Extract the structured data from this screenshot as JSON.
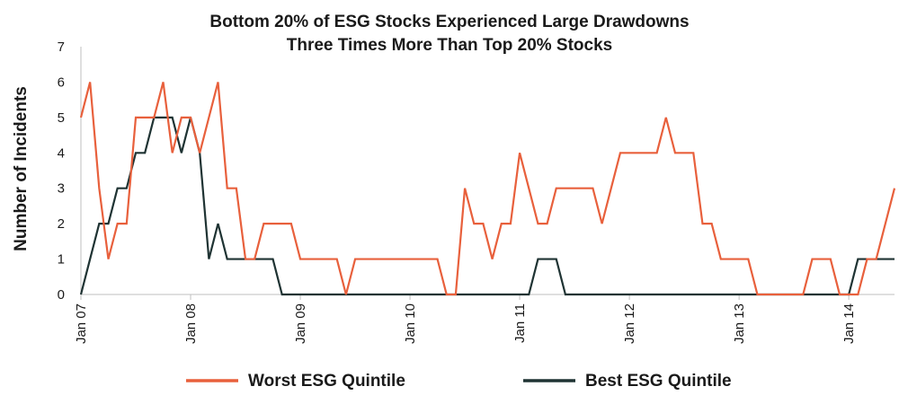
{
  "chart_data": {
    "type": "line",
    "title_lines": [
      "Bottom 20% of ESG Stocks Experienced Large Drawdowns",
      "Three Times More Than Top 20% Stocks"
    ],
    "xlabel": "",
    "ylabel": "Number of Incidents",
    "ylim": [
      0,
      7
    ],
    "yticks": [
      "0",
      "1",
      "2",
      "3",
      "4",
      "5",
      "6",
      "7"
    ],
    "x_start": "Jan 07",
    "x_end": "May 14",
    "x_unit": "month",
    "xticks": [
      {
        "label": "Jan 07",
        "month": 0
      },
      {
        "label": "Jan 08",
        "month": 12
      },
      {
        "label": "Jan 09",
        "month": 24
      },
      {
        "label": "Jan 10",
        "month": 36
      },
      {
        "label": "Jan 11",
        "month": 48
      },
      {
        "label": "Jan 12",
        "month": 60
      },
      {
        "label": "Jan 13",
        "month": 72
      },
      {
        "label": "Jan 14",
        "month": 84
      }
    ],
    "grid": false,
    "legend_position": "bottom",
    "series": [
      {
        "name": "Worst ESG Quintile",
        "color": "#E8603C",
        "points": [
          [
            0,
            5
          ],
          [
            1,
            6
          ],
          [
            2,
            3
          ],
          [
            3,
            1
          ],
          [
            4,
            2
          ],
          [
            5,
            2
          ],
          [
            6,
            5
          ],
          [
            7,
            5
          ],
          [
            8,
            5
          ],
          [
            9,
            6
          ],
          [
            10,
            4
          ],
          [
            11,
            5
          ],
          [
            12,
            5
          ],
          [
            13,
            4
          ],
          [
            14,
            5
          ],
          [
            15,
            6
          ],
          [
            16,
            3
          ],
          [
            17,
            3
          ],
          [
            18,
            1
          ],
          [
            19,
            1
          ],
          [
            20,
            2
          ],
          [
            21,
            2
          ],
          [
            22,
            2
          ],
          [
            23,
            2
          ],
          [
            24,
            1
          ],
          [
            25,
            1
          ],
          [
            26,
            1
          ],
          [
            27,
            1
          ],
          [
            28,
            1
          ],
          [
            29,
            0
          ],
          [
            30,
            1
          ],
          [
            31,
            1
          ],
          [
            32,
            1
          ],
          [
            33,
            1
          ],
          [
            34,
            1
          ],
          [
            35,
            1
          ],
          [
            36,
            1
          ],
          [
            37,
            1
          ],
          [
            38,
            1
          ],
          [
            39,
            1
          ],
          [
            40,
            0
          ],
          [
            41,
            0
          ],
          [
            42,
            3
          ],
          [
            43,
            2
          ],
          [
            44,
            2
          ],
          [
            45,
            1
          ],
          [
            46,
            2
          ],
          [
            47,
            2
          ],
          [
            48,
            4
          ],
          [
            49,
            3
          ],
          [
            50,
            2
          ],
          [
            51,
            2
          ],
          [
            52,
            3
          ],
          [
            53,
            3
          ],
          [
            54,
            3
          ],
          [
            55,
            3
          ],
          [
            56,
            3
          ],
          [
            57,
            2
          ],
          [
            58,
            3
          ],
          [
            59,
            4
          ],
          [
            60,
            4
          ],
          [
            61,
            4
          ],
          [
            62,
            4
          ],
          [
            63,
            4
          ],
          [
            64,
            5
          ],
          [
            65,
            4
          ],
          [
            66,
            4
          ],
          [
            67,
            4
          ],
          [
            68,
            2
          ],
          [
            69,
            2
          ],
          [
            70,
            1
          ],
          [
            71,
            1
          ],
          [
            72,
            1
          ],
          [
            73,
            1
          ],
          [
            74,
            0
          ],
          [
            75,
            0
          ],
          [
            76,
            0
          ],
          [
            77,
            0
          ],
          [
            78,
            0
          ],
          [
            79,
            0
          ],
          [
            80,
            1
          ],
          [
            81,
            1
          ],
          [
            82,
            1
          ],
          [
            83,
            0
          ],
          [
            84,
            0
          ],
          [
            85,
            0
          ],
          [
            86,
            1
          ],
          [
            87,
            1
          ],
          [
            88,
            2
          ],
          [
            89,
            3
          ]
        ]
      },
      {
        "name": "Best ESG Quintile",
        "color": "#1F3333",
        "points": [
          [
            0,
            0
          ],
          [
            1,
            1
          ],
          [
            2,
            2
          ],
          [
            3,
            2
          ],
          [
            4,
            3
          ],
          [
            5,
            3
          ],
          [
            6,
            4
          ],
          [
            7,
            4
          ],
          [
            8,
            5
          ],
          [
            9,
            5
          ],
          [
            10,
            5
          ],
          [
            11,
            4
          ],
          [
            12,
            5
          ],
          [
            13,
            4
          ],
          [
            14,
            1
          ],
          [
            15,
            2
          ],
          [
            16,
            1
          ],
          [
            17,
            1
          ],
          [
            18,
            1
          ],
          [
            19,
            1
          ],
          [
            20,
            1
          ],
          [
            21,
            1
          ],
          [
            22,
            0
          ],
          [
            23,
            0
          ],
          [
            24,
            0
          ],
          [
            25,
            0
          ],
          [
            26,
            0
          ],
          [
            27,
            0
          ],
          [
            28,
            0
          ],
          [
            29,
            0
          ],
          [
            30,
            0
          ],
          [
            31,
            0
          ],
          [
            32,
            0
          ],
          [
            33,
            0
          ],
          [
            34,
            0
          ],
          [
            35,
            0
          ],
          [
            36,
            0
          ],
          [
            37,
            0
          ],
          [
            38,
            0
          ],
          [
            39,
            0
          ],
          [
            40,
            0
          ],
          [
            41,
            0
          ],
          [
            42,
            0
          ],
          [
            43,
            0
          ],
          [
            44,
            0
          ],
          [
            45,
            0
          ],
          [
            46,
            0
          ],
          [
            47,
            0
          ],
          [
            48,
            0
          ],
          [
            49,
            0
          ],
          [
            50,
            1
          ],
          [
            51,
            1
          ],
          [
            52,
            1
          ],
          [
            53,
            0
          ],
          [
            54,
            0
          ],
          [
            55,
            0
          ],
          [
            56,
            0
          ],
          [
            57,
            0
          ],
          [
            58,
            0
          ],
          [
            59,
            0
          ],
          [
            60,
            0
          ],
          [
            61,
            0
          ],
          [
            62,
            0
          ],
          [
            63,
            0
          ],
          [
            64,
            0
          ],
          [
            65,
            0
          ],
          [
            66,
            0
          ],
          [
            67,
            0
          ],
          [
            68,
            0
          ],
          [
            69,
            0
          ],
          [
            70,
            0
          ],
          [
            71,
            0
          ],
          [
            72,
            0
          ],
          [
            73,
            0
          ],
          [
            74,
            0
          ],
          [
            75,
            0
          ],
          [
            76,
            0
          ],
          [
            77,
            0
          ],
          [
            78,
            0
          ],
          [
            79,
            0
          ],
          [
            80,
            0
          ],
          [
            81,
            0
          ],
          [
            82,
            0
          ],
          [
            83,
            0
          ],
          [
            84,
            0
          ],
          [
            85,
            1
          ],
          [
            86,
            1
          ],
          [
            87,
            1
          ],
          [
            88,
            1
          ],
          [
            89,
            1
          ]
        ]
      }
    ]
  }
}
